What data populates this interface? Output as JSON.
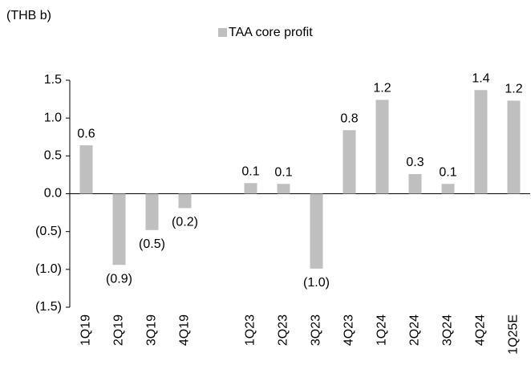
{
  "chart_data": {
    "type": "bar",
    "unit_label": "(THB b)",
    "categories": [
      "1Q19",
      "2Q19",
      "3Q19",
      "4Q19",
      null,
      "1Q23",
      "2Q23",
      "3Q23",
      "4Q23",
      "1Q24",
      "2Q24",
      "3Q24",
      "4Q24",
      "1Q25E"
    ],
    "series": [
      {
        "name": "TAA core profit",
        "color": "#bfbfbf",
        "values": [
          0.64,
          -0.94,
          -0.48,
          -0.19,
          null,
          0.14,
          0.13,
          -0.99,
          0.84,
          1.24,
          0.26,
          0.13,
          1.37,
          1.23
        ],
        "value_labels": [
          "0.6",
          "(0.9)",
          "(0.5)",
          "(0.2)",
          null,
          "0.1",
          "0.1",
          "(1.0)",
          "0.8",
          "1.2",
          "0.3",
          "0.1",
          "1.4",
          "1.2"
        ]
      }
    ],
    "ylim": [
      -1.5,
      1.5
    ],
    "yticks": [
      1.5,
      {
        "value": 1.0,
        "label": "1.0"
      },
      0.5,
      {
        "value": 0.0,
        "label": "0.0"
      },
      {
        "value": -0.5,
        "label": "(0.5)"
      },
      {
        "value": -1.0,
        "label": "(1.0)"
      },
      {
        "value": -1.5,
        "label": "(1.5)"
      }
    ],
    "legend": "top"
  }
}
